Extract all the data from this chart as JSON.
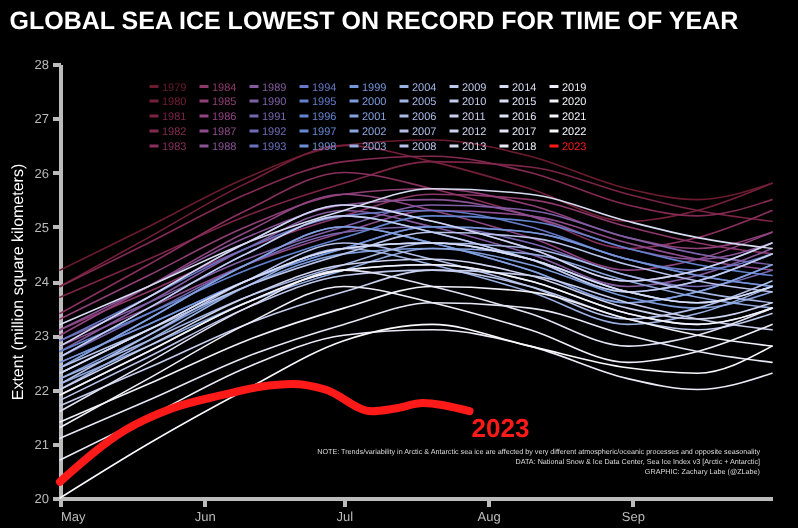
{
  "chart_data": {
    "type": "line",
    "title": "GLOBAL SEA ICE LOWEST ON RECORD FOR TIME OF YEAR",
    "ylabel": "Extent (million square kilometers)",
    "x": [
      "--05-01",
      "--05-20",
      "--06-10",
      "--07-01",
      "--07-20",
      "--08-10",
      "--08-31",
      "--09-15",
      "--10-01"
    ],
    "xlim": [
      "--05-01",
      "--10-01"
    ],
    "xticks": [
      {
        "value": "--05-01",
        "label": "May"
      },
      {
        "value": "--06-01",
        "label": "Jun"
      },
      {
        "value": "--07-01",
        "label": "Jul"
      },
      {
        "value": "--08-01",
        "label": "Aug"
      },
      {
        "value": "--09-01",
        "label": "Sep"
      }
    ],
    "ylim": [
      20,
      28
    ],
    "yticks": [
      20,
      21,
      22,
      23,
      24,
      25,
      26,
      27,
      28
    ],
    "grid": false,
    "legend": "top left",
    "series": [
      {
        "name": "1979",
        "color": "#6b1b2e",
        "values": [
          24.2,
          25.0,
          25.9,
          26.5,
          26.6,
          26.3,
          25.7,
          25.5,
          25.8
        ]
      },
      {
        "name": "1980",
        "color": "#741f3a",
        "values": [
          23.9,
          24.8,
          25.8,
          26.5,
          26.2,
          25.7,
          25.1,
          25.3,
          25.8
        ]
      },
      {
        "name": "1981",
        "color": "#7c2446",
        "values": [
          23.7,
          24.4,
          25.2,
          25.8,
          26.2,
          26.1,
          25.6,
          25.3,
          25.1
        ]
      },
      {
        "name": "1982",
        "color": "#842a52",
        "values": [
          23.9,
          24.7,
          25.6,
          26.2,
          26.3,
          26.0,
          25.4,
          25.2,
          25.5
        ]
      },
      {
        "name": "1983",
        "color": "#8a305e",
        "values": [
          23.4,
          24.3,
          25.3,
          26.0,
          25.7,
          25.2,
          24.6,
          24.8,
          25.3
        ]
      },
      {
        "name": "1984",
        "color": "#8e376a",
        "values": [
          23.1,
          23.8,
          24.6,
          25.2,
          25.6,
          25.5,
          25.0,
          24.7,
          24.5
        ]
      },
      {
        "name": "1985",
        "color": "#903e76",
        "values": [
          23.3,
          24.1,
          25.0,
          25.6,
          25.7,
          25.4,
          24.8,
          24.6,
          24.9
        ]
      },
      {
        "name": "1986",
        "color": "#904582",
        "values": [
          23.0,
          23.9,
          24.9,
          25.6,
          25.3,
          24.8,
          24.2,
          24.4,
          24.9
        ]
      },
      {
        "name": "1987",
        "color": "#8e4c8c",
        "values": [
          22.8,
          23.5,
          24.3,
          24.9,
          25.3,
          25.2,
          24.7,
          24.4,
          24.2
        ]
      },
      {
        "name": "1988",
        "color": "#8a5396",
        "values": [
          23.1,
          23.9,
          24.8,
          25.4,
          25.5,
          25.2,
          24.6,
          24.4,
          24.7
        ]
      },
      {
        "name": "1989",
        "color": "#855a9f",
        "values": [
          22.7,
          23.6,
          24.6,
          25.3,
          25.0,
          24.5,
          23.9,
          24.1,
          24.6
        ]
      },
      {
        "name": "1990",
        "color": "#7f60a8",
        "values": [
          22.9,
          23.6,
          24.4,
          25.0,
          25.4,
          25.3,
          24.8,
          24.5,
          24.3
        ]
      },
      {
        "name": "1991",
        "color": "#7866b0",
        "values": [
          22.6,
          23.4,
          24.3,
          24.9,
          25.0,
          24.7,
          24.1,
          23.9,
          24.2
        ]
      },
      {
        "name": "1992",
        "color": "#716cb8",
        "values": [
          22.8,
          23.7,
          24.7,
          25.4,
          25.1,
          24.6,
          24.0,
          24.2,
          24.7
        ]
      },
      {
        "name": "1993",
        "color": "#6b72c0",
        "values": [
          22.5,
          23.2,
          24.0,
          24.6,
          25.0,
          24.9,
          24.4,
          24.1,
          23.9
        ]
      },
      {
        "name": "1994",
        "color": "#6678c6",
        "values": [
          22.9,
          23.7,
          24.6,
          25.2,
          25.3,
          25.0,
          24.4,
          24.2,
          24.5
        ]
      },
      {
        "name": "1995",
        "color": "#627ecc",
        "values": [
          22.4,
          23.3,
          24.3,
          25.0,
          24.7,
          24.2,
          23.6,
          23.8,
          24.3
        ]
      },
      {
        "name": "1996",
        "color": "#6284d0",
        "values": [
          22.7,
          23.4,
          24.2,
          24.8,
          25.2,
          25.1,
          24.6,
          24.3,
          24.1
        ]
      },
      {
        "name": "1997",
        "color": "#668ad4",
        "values": [
          22.3,
          23.1,
          24.0,
          24.6,
          24.7,
          24.4,
          23.8,
          23.6,
          23.9
        ]
      },
      {
        "name": "1998",
        "color": "#6c90d7",
        "values": [
          22.6,
          23.5,
          24.5,
          25.2,
          24.9,
          24.4,
          23.8,
          24.0,
          24.5
        ]
      },
      {
        "name": "1999",
        "color": "#7496da",
        "values": [
          22.5,
          23.2,
          24.0,
          24.6,
          25.0,
          24.9,
          24.4,
          24.1,
          23.9
        ]
      },
      {
        "name": "2000",
        "color": "#7c9cdc",
        "values": [
          22.2,
          23.0,
          23.9,
          24.5,
          24.6,
          24.3,
          23.7,
          23.5,
          23.8
        ]
      },
      {
        "name": "2001",
        "color": "#84a2de",
        "values": [
          22.4,
          23.3,
          24.3,
          25.0,
          24.7,
          24.2,
          23.6,
          23.8,
          24.3
        ]
      },
      {
        "name": "2002",
        "color": "#8ca7e0",
        "values": [
          22.1,
          22.8,
          23.6,
          24.2,
          24.6,
          24.5,
          24.0,
          23.7,
          23.5
        ]
      },
      {
        "name": "2003",
        "color": "#94ace2",
        "values": [
          22.3,
          23.1,
          24.0,
          24.6,
          24.7,
          24.4,
          23.8,
          23.6,
          23.9
        ]
      },
      {
        "name": "2004",
        "color": "#9cb1e4",
        "values": [
          22.0,
          22.9,
          23.9,
          24.6,
          24.3,
          23.8,
          23.2,
          23.4,
          23.9
        ]
      },
      {
        "name": "2005",
        "color": "#a4b6e6",
        "values": [
          22.2,
          22.9,
          23.7,
          24.3,
          24.7,
          24.6,
          24.1,
          23.8,
          23.6
        ]
      },
      {
        "name": "2006",
        "color": "#abbbe8",
        "values": [
          21.9,
          22.7,
          23.6,
          24.2,
          24.3,
          24.0,
          23.4,
          23.2,
          23.5
        ]
      },
      {
        "name": "2007",
        "color": "#b2c0ea",
        "values": [
          22.1,
          23.0,
          24.0,
          24.7,
          24.4,
          23.9,
          23.3,
          23.5,
          24.0
        ]
      },
      {
        "name": "2008",
        "color": "#b8c4eb",
        "values": [
          22.4,
          23.1,
          23.9,
          24.5,
          24.9,
          24.8,
          24.3,
          24.0,
          23.8
        ]
      },
      {
        "name": "2009",
        "color": "#bec8ec",
        "values": [
          21.8,
          22.6,
          23.5,
          24.1,
          24.2,
          23.9,
          23.3,
          23.1,
          23.4
        ]
      },
      {
        "name": "2010",
        "color": "#c4ccee",
        "values": [
          22.6,
          23.5,
          24.5,
          25.2,
          24.9,
          24.4,
          23.8,
          24.0,
          24.5
        ]
      },
      {
        "name": "2011",
        "color": "#c9d0ef",
        "values": [
          21.7,
          22.4,
          23.2,
          23.8,
          24.2,
          24.1,
          23.6,
          23.3,
          23.1
        ]
      },
      {
        "name": "2012",
        "color": "#ced4f0",
        "values": [
          22.0,
          22.8,
          23.7,
          24.3,
          24.4,
          24.1,
          23.5,
          23.3,
          23.6
        ]
      },
      {
        "name": "2013",
        "color": "#d3d8f1",
        "values": [
          22.8,
          23.7,
          24.7,
          25.4,
          25.1,
          24.6,
          24.0,
          24.2,
          24.7
        ]
      },
      {
        "name": "2014",
        "color": "#d8dcf2",
        "values": [
          23.2,
          23.9,
          24.7,
          25.3,
          25.7,
          25.6,
          25.1,
          24.8,
          24.6
        ]
      },
      {
        "name": "2015",
        "color": "#dde0f4",
        "values": [
          22.3,
          23.1,
          24.0,
          24.6,
          24.7,
          24.4,
          23.8,
          23.6,
          23.9
        ]
      },
      {
        "name": "2016",
        "color": "#e2e4f5",
        "values": [
          21.6,
          22.5,
          23.5,
          24.2,
          23.9,
          23.4,
          22.8,
          23.0,
          23.5
        ]
      },
      {
        "name": "2017",
        "color": "#e6e8f6",
        "values": [
          21.1,
          21.8,
          22.6,
          23.2,
          23.6,
          23.5,
          23.0,
          22.7,
          22.5
        ]
      },
      {
        "name": "2018",
        "color": "#eaebf7",
        "values": [
          20.7,
          21.5,
          22.4,
          23.0,
          23.1,
          22.8,
          22.2,
          22.0,
          22.3
        ]
      },
      {
        "name": "2019",
        "color": "#eeeff8",
        "values": [
          21.3,
          22.2,
          23.2,
          23.9,
          23.6,
          23.1,
          22.5,
          22.7,
          23.2
        ]
      },
      {
        "name": "2020",
        "color": "#f1f2fa",
        "values": [
          21.4,
          22.1,
          22.9,
          23.5,
          23.9,
          23.8,
          23.3,
          23.0,
          22.8
        ]
      },
      {
        "name": "2021",
        "color": "#f5f5fb",
        "values": [
          21.9,
          22.7,
          23.6,
          24.2,
          24.3,
          24.0,
          23.4,
          23.2,
          23.5
        ]
      },
      {
        "name": "2022",
        "color": "#f9f9fd",
        "values": [
          20.0,
          21.0,
          22.0,
          22.9,
          23.2,
          22.8,
          22.4,
          22.3,
          22.8
        ]
      },
      {
        "name": "2023",
        "color": "#ff1a1a",
        "x": [
          "--05-01",
          "--05-15",
          "--05-25",
          "--06-05",
          "--06-13",
          "--06-20",
          "--06-27",
          "--07-07",
          "--07-12",
          "--07-18",
          "--07-28"
        ],
        "values": [
          20.3,
          21.25,
          21.65,
          21.9,
          22.05,
          22.1,
          22.0,
          21.6,
          21.65,
          21.75,
          21.6
        ]
      }
    ],
    "annotations": [
      "NOTE: Trends/variability in Arctic & Antarctic sea ice are affected by very different atmospheric/oceanic processes and opposite seasonality",
      "DATA: National Snow & Ice Data Center, Sea Ice Index v3 [Arctic + Antarctic]",
      "GRAPHIC: Zachary Labe (@ZLabe)"
    ]
  }
}
